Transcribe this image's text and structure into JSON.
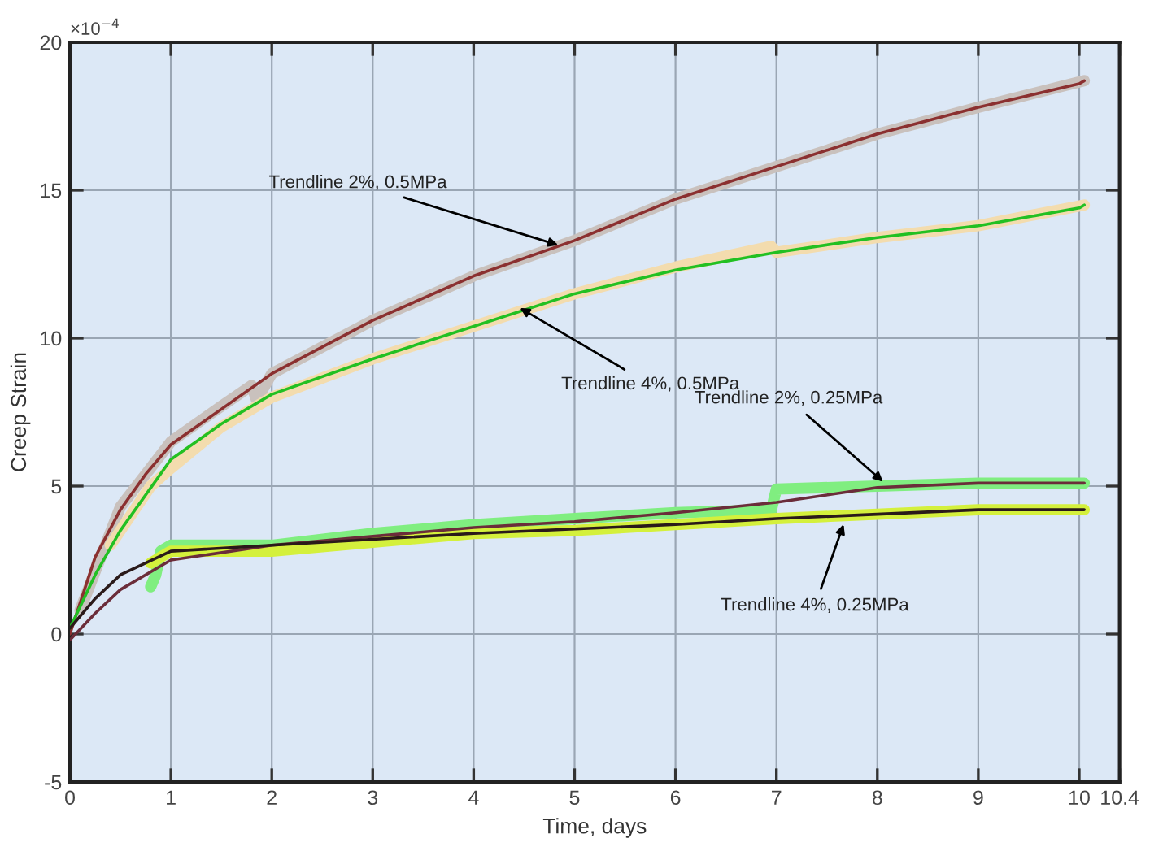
{
  "chart_data": {
    "type": "line",
    "xlabel": "Time, days",
    "ylabel": "Creep Strain",
    "xlim": [
      0,
      10.4
    ],
    "xticks": [
      0,
      1,
      2,
      3,
      4,
      5,
      6,
      7,
      8,
      9,
      10,
      10.4
    ],
    "ylim": [
      -5,
      20
    ],
    "yticks": [
      -5,
      0,
      5,
      10,
      15,
      20
    ],
    "grid": true,
    "legend": false,
    "marker": "none",
    "line_style": "solid",
    "annotations": [
      "×10$^{−4}$",
      {
        "text": "Trendline 2%, 0.5MPa",
        "x": 4.88,
        "y": 13.1
      },
      {
        "text": "Trendline 4%, 0.5MPa",
        "x": 4.42,
        "y": 11.1
      },
      {
        "text": "Trendline 2%, 0.25MPa",
        "x": 8.09,
        "y": 5.05
      },
      {
        "text": "Trendline 4%, 0.25MPa",
        "x": 7.68,
        "y": 3.85
      }
    ],
    "series": [
      {
        "color": "#c9c1bd",
        "x": [
          0.1,
          0.5,
          1,
          1.5,
          1.8,
          1.85,
          2,
          3,
          4,
          5,
          6,
          7,
          8,
          9,
          10.05
        ],
        "values": [
          0.8,
          4.3,
          6.5,
          7.7,
          8.4,
          7.9,
          8.8,
          10.6,
          12.1,
          13.3,
          14.7,
          15.8,
          16.9,
          17.8,
          18.7
        ]
      },
      {
        "color": "#f3dcae",
        "x": [
          0.4,
          0.8,
          1,
          1.5,
          2,
          3,
          4,
          5,
          6,
          6.95,
          7,
          8,
          9,
          10.05
        ],
        "values": [
          3.0,
          5.0,
          5.6,
          7.0,
          8.0,
          9.3,
          10.4,
          11.5,
          12.4,
          13.1,
          12.9,
          13.4,
          13.8,
          14.5
        ]
      },
      {
        "color": "#80ee80",
        "x": [
          0.8,
          0.85,
          0.9,
          1,
          2,
          3,
          4,
          5,
          6,
          6.95,
          7,
          8,
          9,
          10.05
        ],
        "values": [
          1.6,
          2.0,
          2.8,
          3.0,
          3.0,
          3.4,
          3.7,
          3.9,
          4.1,
          4.2,
          4.9,
          5.0,
          5.1,
          5.1
        ]
      },
      {
        "color": "#d4f03c",
        "x": [
          0.8,
          1,
          2,
          3,
          4,
          5,
          6,
          7,
          8,
          9,
          10.05
        ],
        "values": [
          2.4,
          2.8,
          2.8,
          3.1,
          3.4,
          3.5,
          3.7,
          3.9,
          4.05,
          4.2,
          4.2
        ]
      },
      {
        "color": "#8b3030",
        "x": [
          0,
          0.25,
          0.5,
          0.75,
          1,
          1.5,
          2,
          3,
          4,
          5,
          6,
          7,
          8,
          9,
          10,
          10.05
        ],
        "values": [
          0,
          2.6,
          4.2,
          5.4,
          6.4,
          7.6,
          8.8,
          10.6,
          12.1,
          13.3,
          14.7,
          15.8,
          16.9,
          17.8,
          18.6,
          18.7
        ]
      },
      {
        "color": "#22c022",
        "x": [
          0,
          0.25,
          0.5,
          1,
          1.5,
          2,
          3,
          4,
          5,
          6,
          7,
          8,
          9,
          10,
          10.05
        ],
        "values": [
          0.2,
          2.0,
          3.5,
          5.9,
          7.1,
          8.1,
          9.3,
          10.4,
          11.5,
          12.3,
          12.9,
          13.4,
          13.8,
          14.4,
          14.5
        ]
      },
      {
        "color": "#6b2d3a",
        "x": [
          0,
          0.25,
          0.5,
          1,
          2,
          3,
          4,
          5,
          6,
          7,
          8,
          9,
          10,
          10.05
        ],
        "values": [
          -0.2,
          0.7,
          1.5,
          2.5,
          3.0,
          3.3,
          3.6,
          3.8,
          4.1,
          4.45,
          4.95,
          5.1,
          5.1,
          5.1
        ]
      },
      {
        "color": "#2a1a1a",
        "x": [
          0,
          0.25,
          0.5,
          1,
          2,
          3,
          4,
          5,
          6,
          7,
          8,
          9,
          10,
          10.05
        ],
        "values": [
          0.2,
          1.2,
          2.0,
          2.8,
          3.0,
          3.2,
          3.4,
          3.55,
          3.7,
          3.9,
          4.05,
          4.2,
          4.2,
          4.2
        ]
      }
    ]
  }
}
